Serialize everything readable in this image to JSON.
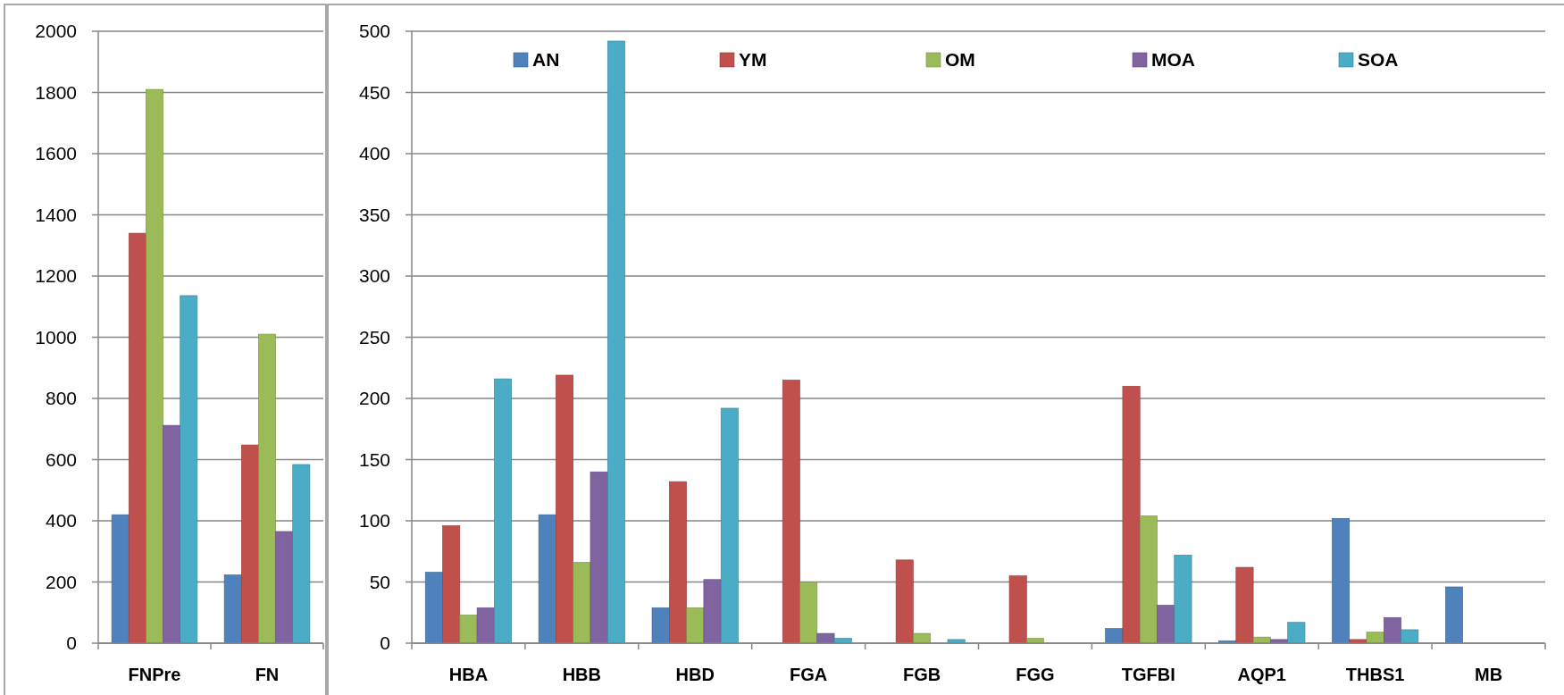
{
  "chart_data": [
    {
      "type": "bar",
      "categories": [
        "FNPre",
        "FN"
      ],
      "series": [
        {
          "color": "#4f81bd",
          "values": [
            420,
            223
          ]
        },
        {
          "color": "#c0504d",
          "values": [
            1340,
            648
          ]
        },
        {
          "color": "#9bbb59",
          "values": [
            1810,
            1010
          ]
        },
        {
          "color": "#8064a2",
          "values": [
            712,
            365
          ]
        },
        {
          "color": "#4bacc6",
          "values": [
            1136,
            584
          ]
        }
      ],
      "ylim": [
        0,
        2000
      ],
      "yticks": [
        0,
        200,
        400,
        600,
        800,
        1000,
        1200,
        1400,
        1600,
        1800,
        2000
      ],
      "grid": "y"
    },
    {
      "type": "bar",
      "categories": [
        "HBA",
        "HBB",
        "HBD",
        "FGA",
        "FGB",
        "FGG",
        "TGFBI",
        "AQP1",
        "THBS1",
        "MB"
      ],
      "series": [
        {
          "name": "AN",
          "color": "#4f81bd",
          "values": [
            58,
            105,
            29,
            null,
            null,
            null,
            12,
            2,
            102,
            46
          ]
        },
        {
          "name": "YM",
          "color": "#c0504d",
          "values": [
            96,
            219,
            132,
            215,
            68,
            55,
            210,
            62,
            3,
            null
          ]
        },
        {
          "name": "OM",
          "color": "#9bbb59",
          "values": [
            23,
            66,
            29,
            50,
            8,
            4,
            104,
            5,
            9,
            null
          ]
        },
        {
          "name": "MOA",
          "color": "#8064a2",
          "values": [
            29,
            140,
            52,
            8,
            null,
            null,
            31,
            3,
            21,
            null
          ]
        },
        {
          "name": "SOA",
          "color": "#4bacc6",
          "values": [
            216,
            492,
            192,
            4,
            3,
            null,
            72,
            17,
            11,
            null
          ]
        }
      ],
      "ylim": [
        0,
        500
      ],
      "yticks": [
        0,
        50,
        100,
        150,
        200,
        250,
        300,
        350,
        400,
        450,
        500
      ],
      "grid": "y",
      "legend": "top"
    }
  ]
}
